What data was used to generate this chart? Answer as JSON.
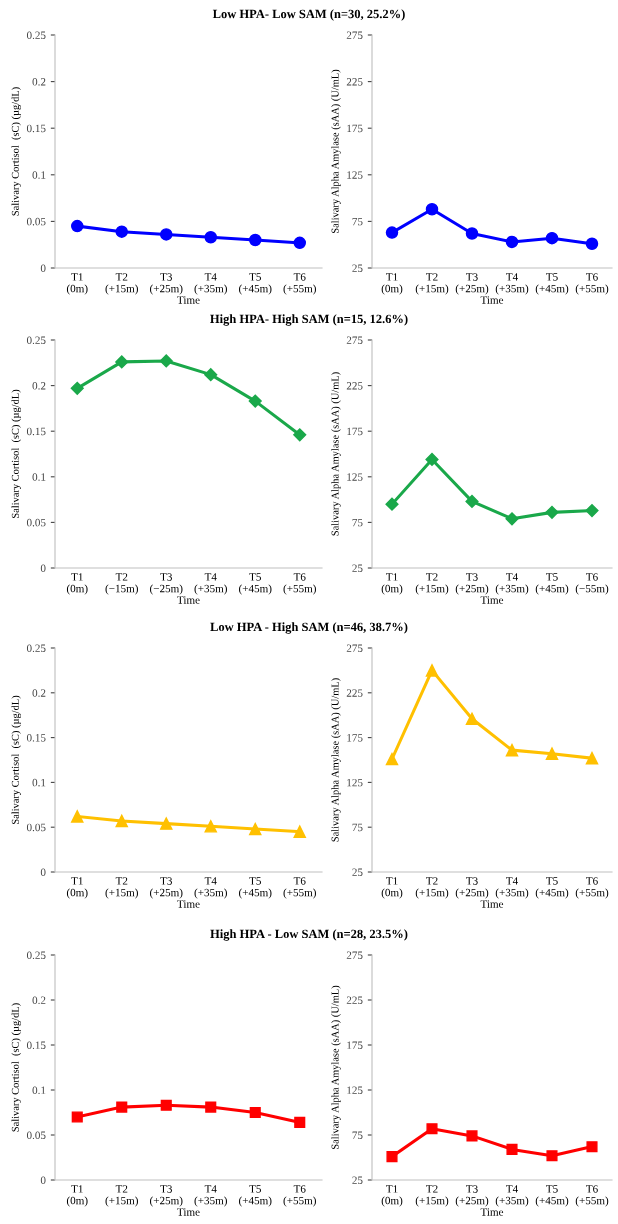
{
  "chart_data": [
    {
      "type": "line",
      "title": "Low HPA- Low SAM (n=30, 25.2%)",
      "xlabel": "Time",
      "ylabel": "Salivary Cortisol  (sC) (µg/dL)",
      "categories": [
        "T1\n(0m)",
        "T2\n(+15m)",
        "T3\n(+25m)",
        "T4\n(+35m)",
        "T5\n(+45m)",
        "T6\n(+55m)"
      ],
      "series": [
        {
          "color": "#0000ff",
          "values": [
            0.045,
            0.039,
            0.036,
            0.033,
            0.03,
            0.027
          ]
        }
      ],
      "ylim": [
        0,
        0.25
      ],
      "yticks": [
        0,
        0.05,
        0.1,
        0.15,
        0.2,
        0.25
      ],
      "marker": "circle",
      "line_style": "solid",
      "grid": false
    },
    {
      "type": "line",
      "xlabel": "Time",
      "ylabel": "Salivary Alpha Amylase (sAA) (U/mL)",
      "categories": [
        "T1\n(0m)",
        "T2\n(+15m)",
        "T3\n(+25m)",
        "T4\n(+35m)",
        "T5\n(+45m)",
        "T6\n(+55m)"
      ],
      "series": [
        {
          "color": "#0000ff",
          "values": [
            63,
            88,
            62,
            53,
            57,
            51
          ]
        }
      ],
      "ylim": [
        25,
        275
      ],
      "yticks": [
        25,
        75,
        125,
        175,
        225,
        275
      ],
      "marker": "circle",
      "line_style": "solid",
      "grid": false
    },
    {
      "type": "line",
      "title": "High HPA- High SAM (n=15, 12.6%)",
      "xlabel": "Time",
      "ylabel": "Salivary Cortisol  (sC) (µg/dL)",
      "categories": [
        "T1\n(0m)",
        "T2\n(−15m)",
        "T3\n(−25m)",
        "T4\n(+35m)",
        "T5\n(+45m)",
        "T6\n(+55m)"
      ],
      "series": [
        {
          "color": "#1aa84a",
          "values": [
            0.197,
            0.226,
            0.227,
            0.212,
            0.183,
            0.146
          ]
        }
      ],
      "ylim": [
        0,
        0.25
      ],
      "yticks": [
        0,
        0.05,
        0.1,
        0.15,
        0.2,
        0.25
      ],
      "marker": "diamond",
      "line_style": "solid",
      "grid": false
    },
    {
      "type": "line",
      "xlabel": "Time",
      "ylabel": "Salivary Alpha Amylase (sAA) (U/mL)",
      "categories": [
        "T1\n(0m)",
        "T2\n(+15m)",
        "T3\n(+25m)",
        "T4\n(+35m)",
        "T5\n(+45m)",
        "T6\n(−55m)"
      ],
      "series": [
        {
          "color": "#1aa84a",
          "values": [
            95,
            144,
            98,
            79,
            86,
            88
          ]
        }
      ],
      "ylim": [
        25,
        275
      ],
      "yticks": [
        25,
        75,
        125,
        175,
        225,
        275
      ],
      "marker": "diamond",
      "line_style": "solid",
      "grid": false
    },
    {
      "type": "line",
      "title": "Low HPA - High SAM (n=46, 38.7%)",
      "xlabel": "Time",
      "ylabel": "Salivary Cortisol  (sC) (µg/dL)",
      "categories": [
        "T1\n(0m)",
        "T2\n(+15m)",
        "T3\n(+25m)",
        "T4\n(+35m)",
        "T5\n(+45m)",
        "T6\n(+55m)"
      ],
      "series": [
        {
          "color": "#ffc000",
          "values": [
            0.062,
            0.057,
            0.054,
            0.051,
            0.048,
            0.045
          ]
        }
      ],
      "ylim": [
        0,
        0.25
      ],
      "yticks": [
        0,
        0.05,
        0.1,
        0.15,
        0.2,
        0.25
      ],
      "marker": "triangle",
      "line_style": "solid",
      "grid": false
    },
    {
      "type": "line",
      "xlabel": "Time",
      "ylabel": "Salivary Alpha Amylase (sAA) (U/mL)",
      "categories": [
        "T1\n(0m)",
        "T2\n(+15m)",
        "T3\n(+25m)",
        "T4\n(+35m)",
        "T5\n(+45m)",
        "T6\n(+55m)"
      ],
      "series": [
        {
          "color": "#ffc000",
          "values": [
            151,
            250,
            196,
            161,
            157,
            152
          ]
        }
      ],
      "ylim": [
        25,
        275
      ],
      "yticks": [
        25,
        75,
        125,
        175,
        225,
        275
      ],
      "marker": "triangle",
      "line_style": "solid",
      "grid": false
    },
    {
      "type": "line",
      "title": "High HPA - Low SAM (n=28, 23.5%)",
      "xlabel": "Time",
      "ylabel": "Salivary Cortisol  (sC) (µg/dL)",
      "categories": [
        "T1\n(0m)",
        "T2\n(+15m)",
        "T3\n(+25m)",
        "T4\n(+35m)",
        "T5\n(+45m)",
        "T6\n(+55m)"
      ],
      "series": [
        {
          "color": "#ff0000",
          "values": [
            0.07,
            0.081,
            0.083,
            0.081,
            0.075,
            0.064
          ]
        }
      ],
      "ylim": [
        0,
        0.25
      ],
      "yticks": [
        0,
        0.05,
        0.1,
        0.15,
        0.2,
        0.25
      ],
      "marker": "square",
      "line_style": "solid",
      "grid": false
    },
    {
      "type": "line",
      "xlabel": "Time",
      "ylabel": "Salivary Alpha Amylase (sAA) (U/mL)",
      "categories": [
        "T1\n(0m)",
        "T2\n(+15m)",
        "T3\n(+25m)",
        "T4\n(+35m)",
        "T5\n(+45m)",
        "T6\n(+55m)"
      ],
      "series": [
        {
          "color": "#ff0000",
          "values": [
            51,
            82,
            74,
            59,
            52,
            62
          ]
        }
      ],
      "ylim": [
        25,
        275
      ],
      "yticks": [
        25,
        75,
        125,
        175,
        225,
        275
      ],
      "marker": "square",
      "line_style": "solid",
      "grid": false
    }
  ]
}
